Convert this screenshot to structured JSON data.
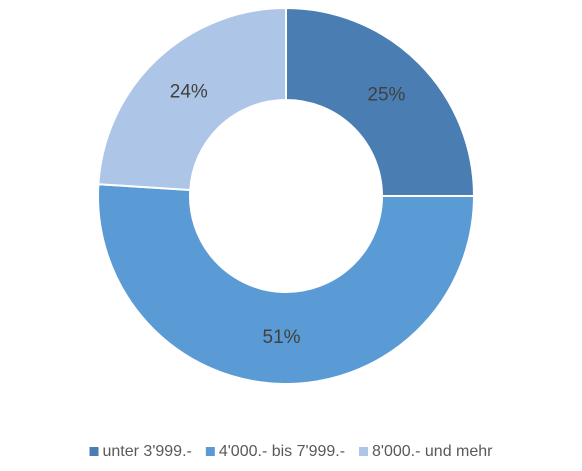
{
  "chart_data": {
    "type": "donut",
    "categories": [
      "unter 3'999.-",
      "4'000.- bis 7'999.-",
      "8'000.- und mehr"
    ],
    "values": [
      25,
      51,
      24
    ],
    "value_labels": [
      "25%",
      "51%",
      "24%"
    ],
    "colors": [
      "#4a7eb3",
      "#5b9bd5",
      "#adc5e7"
    ],
    "legend": "bottom"
  }
}
